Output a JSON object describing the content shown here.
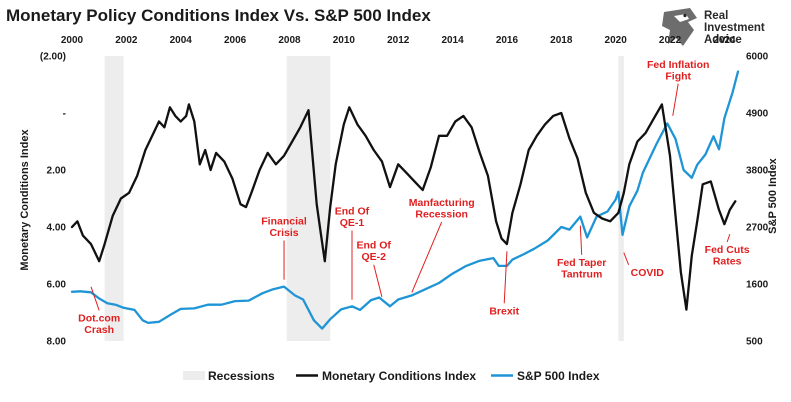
{
  "logo": {
    "lines": [
      "Real",
      "Investment",
      "Advice"
    ]
  },
  "chart_data": {
    "type": "line",
    "title": "Monetary Policy Conditions Index Vs. S&P 500 Index",
    "xlim": [
      2000,
      2024.5
    ],
    "x_ticks": [
      2000,
      2002,
      2004,
      2006,
      2008,
      2010,
      2012,
      2014,
      2016,
      2018,
      2020,
      2022,
      2024
    ],
    "y_left": {
      "label": "Monetary Conditions Index",
      "range": [
        -2,
        8
      ],
      "inverted": true,
      "ticks": [
        -2,
        0,
        2,
        4,
        6,
        8
      ],
      "tick_labels": [
        "(2.00)",
        "-",
        "2.00",
        "4.00",
        "6.00",
        "8.00"
      ]
    },
    "y_right": {
      "label": "S&P 500 Index",
      "range": [
        500,
        6000
      ],
      "ticks": [
        500,
        1600,
        2700,
        3800,
        4900,
        6000
      ],
      "tick_labels": [
        "500",
        "1600",
        "2700",
        "3800",
        "4900",
        "6000"
      ]
    },
    "legend_position": "bottom",
    "series": [
      {
        "name": "Monetary Conditions Index",
        "axis": "left",
        "color": "#111111",
        "x": [
          2000.0,
          2000.2,
          2000.4,
          2000.7,
          2001.0,
          2001.2,
          2001.5,
          2001.8,
          2002.1,
          2002.4,
          2002.7,
          2003.0,
          2003.2,
          2003.4,
          2003.6,
          2003.8,
          2004.0,
          2004.2,
          2004.3,
          2004.5,
          2004.7,
          2004.9,
          2005.1,
          2005.3,
          2005.6,
          2005.9,
          2006.2,
          2006.4,
          2006.6,
          2006.9,
          2007.2,
          2007.5,
          2007.8,
          2008.1,
          2008.4,
          2008.7,
          2009.0,
          2009.15,
          2009.3,
          2009.5,
          2009.7,
          2010.0,
          2010.2,
          2010.5,
          2010.8,
          2011.1,
          2011.4,
          2011.7,
          2012.0,
          2012.3,
          2012.6,
          2012.9,
          2013.2,
          2013.5,
          2013.8,
          2014.1,
          2014.4,
          2014.7,
          2015.0,
          2015.3,
          2015.6,
          2015.8,
          2016.0,
          2016.2,
          2016.5,
          2016.8,
          2017.1,
          2017.4,
          2017.7,
          2018.0,
          2018.3,
          2018.6,
          2018.9,
          2019.2,
          2019.5,
          2019.8,
          2020.1,
          2020.3,
          2020.5,
          2020.8,
          2021.1,
          2021.4,
          2021.7,
          2022.0,
          2022.2,
          2022.4,
          2022.6,
          2022.8,
          2023.0,
          2023.2,
          2023.5,
          2023.8,
          2024.0,
          2024.2,
          2024.4
        ],
        "values": [
          4.0,
          3.8,
          4.3,
          4.6,
          5.2,
          4.6,
          3.6,
          3.0,
          2.8,
          2.2,
          1.3,
          0.7,
          0.3,
          0.5,
          -0.2,
          0.1,
          0.3,
          0.1,
          -0.3,
          0.3,
          1.8,
          1.3,
          2.0,
          1.4,
          1.7,
          2.3,
          3.2,
          3.3,
          2.8,
          2.0,
          1.4,
          1.8,
          1.5,
          1.0,
          0.5,
          -0.1,
          3.2,
          4.2,
          5.2,
          3.3,
          1.8,
          0.4,
          -0.2,
          0.4,
          0.8,
          1.3,
          1.7,
          2.6,
          1.8,
          2.1,
          2.4,
          2.7,
          1.9,
          0.8,
          0.8,
          0.3,
          0.1,
          0.5,
          1.4,
          2.2,
          3.8,
          4.4,
          4.6,
          3.5,
          2.5,
          1.3,
          0.8,
          0.4,
          0.1,
          0.0,
          0.9,
          1.6,
          2.8,
          3.5,
          3.7,
          3.8,
          3.5,
          2.8,
          1.8,
          1.0,
          0.7,
          0.2,
          -0.3,
          1.5,
          3.6,
          5.6,
          6.9,
          5.0,
          3.8,
          2.5,
          2.4,
          3.4,
          3.9,
          3.4,
          3.1
        ]
      },
      {
        "name": "S&P 500 Index",
        "axis": "right",
        "color": "#1f95d6",
        "x": [
          2000.0,
          2000.3,
          2000.7,
          2001.0,
          2001.3,
          2001.6,
          2001.9,
          2002.3,
          2002.6,
          2002.8,
          2003.2,
          2003.6,
          2004.0,
          2004.5,
          2005.0,
          2005.5,
          2006.0,
          2006.5,
          2007.0,
          2007.4,
          2007.8,
          2008.2,
          2008.5,
          2008.9,
          2009.2,
          2009.5,
          2009.9,
          2010.3,
          2010.6,
          2011.0,
          2011.3,
          2011.7,
          2012.0,
          2012.5,
          2013.0,
          2013.5,
          2014.0,
          2014.5,
          2015.0,
          2015.5,
          2015.7,
          2016.0,
          2016.2,
          2016.6,
          2017.0,
          2017.5,
          2018.0,
          2018.3,
          2018.7,
          2018.95,
          2019.3,
          2019.7,
          2020.0,
          2020.1,
          2020.25,
          2020.5,
          2020.8,
          2021.0,
          2021.5,
          2021.9,
          2022.2,
          2022.5,
          2022.8,
          2023.0,
          2023.3,
          2023.6,
          2023.8,
          2024.0,
          2024.3,
          2024.5
        ],
        "values": [
          1450,
          1460,
          1440,
          1320,
          1230,
          1200,
          1140,
          1100,
          900,
          850,
          870,
          1000,
          1120,
          1130,
          1200,
          1200,
          1270,
          1280,
          1420,
          1500,
          1550,
          1380,
          1300,
          900,
          740,
          920,
          1110,
          1170,
          1100,
          1290,
          1340,
          1170,
          1300,
          1380,
          1500,
          1620,
          1800,
          1950,
          2050,
          2100,
          1950,
          1950,
          2070,
          2170,
          2280,
          2440,
          2700,
          2650,
          2900,
          2500,
          2900,
          3000,
          3230,
          3380,
          2550,
          3100,
          3400,
          3750,
          4300,
          4700,
          4400,
          3800,
          3650,
          3900,
          4100,
          4450,
          4200,
          4800,
          5300,
          5700
        ]
      }
    ],
    "recessions": {
      "label": "Recessions",
      "periods": [
        [
          2001.2,
          2001.9
        ],
        [
          2007.9,
          2009.5
        ],
        [
          2020.1,
          2020.3
        ]
      ]
    },
    "annotations": [
      {
        "lines": [
          "Dot.com",
          "Crash"
        ],
        "axis": "left",
        "target": [
          2000.7,
          6.1
        ],
        "text_at": [
          2001.0,
          7.4
        ],
        "align": "middle"
      },
      {
        "lines": [
          "Financial",
          "Crisis"
        ],
        "axis": "left",
        "target": [
          2007.8,
          5.85
        ],
        "text_at": [
          2007.8,
          4.0
        ],
        "align": "middle"
      },
      {
        "lines": [
          "End Of",
          "QE-1"
        ],
        "axis": "left",
        "target": [
          2010.3,
          6.55
        ],
        "text_at": [
          2010.3,
          3.65
        ],
        "align": "middle"
      },
      {
        "lines": [
          "End Of",
          "QE-2"
        ],
        "axis": "left",
        "target": [
          2011.4,
          6.45
        ],
        "text_at": [
          2011.1,
          4.85
        ],
        "align": "middle"
      },
      {
        "lines": [
          "Manfacturing",
          "Recession"
        ],
        "axis": "left",
        "target": [
          2012.5,
          6.3
        ],
        "text_at": [
          2013.6,
          3.35
        ],
        "align": "middle"
      },
      {
        "lines": [
          "Brexit"
        ],
        "axis": "left",
        "target": [
          2016.0,
          4.85
        ],
        "text_at": [
          2015.9,
          6.95
        ],
        "align": "middle"
      },
      {
        "lines": [
          "Fed Taper",
          "Tantrum"
        ],
        "axis": "left",
        "target": [
          2018.7,
          3.95
        ],
        "text_at": [
          2018.75,
          5.45
        ],
        "align": "middle"
      },
      {
        "lines": [
          "COVID"
        ],
        "axis": "left",
        "target": [
          2020.3,
          4.9
        ],
        "text_at": [
          2020.55,
          5.6
        ],
        "align": "start"
      },
      {
        "lines": [
          "Fed Inflation",
          "Fight"
        ],
        "axis": "left",
        "target": [
          2022.1,
          0.1
        ],
        "text_at": [
          2022.3,
          -1.5
        ],
        "align": "middle"
      },
      {
        "lines": [
          "Fed Cuts",
          "Rates"
        ],
        "axis": "left",
        "target": [
          2024.2,
          4.25
        ],
        "text_at": [
          2024.1,
          5.0
        ],
        "align": "middle"
      }
    ]
  }
}
